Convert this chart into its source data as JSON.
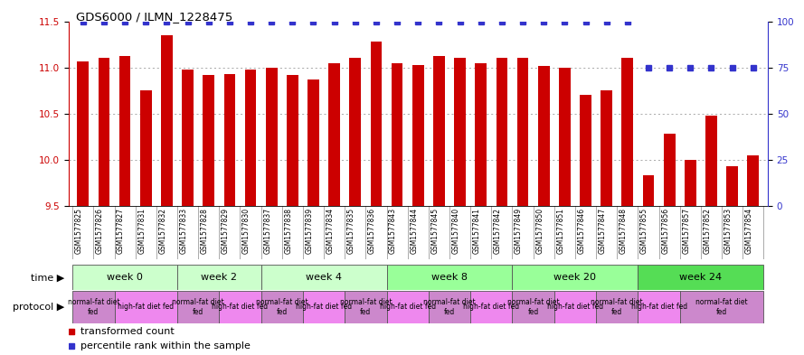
{
  "title": "GDS6000 / ILMN_1228475",
  "samples": [
    "GSM1577825",
    "GSM1577826",
    "GSM1577827",
    "GSM1577831",
    "GSM1577832",
    "GSM1577833",
    "GSM1577828",
    "GSM1577829",
    "GSM1577830",
    "GSM1577837",
    "GSM1577838",
    "GSM1577839",
    "GSM1577834",
    "GSM1577835",
    "GSM1577836",
    "GSM1577843",
    "GSM1577844",
    "GSM1577845",
    "GSM1577840",
    "GSM1577841",
    "GSM1577842",
    "GSM1577849",
    "GSM1577850",
    "GSM1577851",
    "GSM1577846",
    "GSM1577847",
    "GSM1577848",
    "GSM1577855",
    "GSM1577856",
    "GSM1577857",
    "GSM1577852",
    "GSM1577853",
    "GSM1577854"
  ],
  "bar_values": [
    11.07,
    11.1,
    11.12,
    10.75,
    11.35,
    10.98,
    10.92,
    10.93,
    10.98,
    11.0,
    10.92,
    10.87,
    11.05,
    11.1,
    11.28,
    11.05,
    11.03,
    11.12,
    11.1,
    11.05,
    11.1,
    11.1,
    11.02,
    11.0,
    10.7,
    10.75,
    11.1,
    9.83,
    10.28,
    10.0,
    10.48,
    9.93,
    10.05
  ],
  "percentile_values": [
    100,
    100,
    100,
    100,
    100,
    100,
    100,
    100,
    100,
    100,
    100,
    100,
    100,
    100,
    100,
    100,
    100,
    100,
    100,
    100,
    100,
    100,
    100,
    100,
    100,
    100,
    100,
    75,
    75,
    75,
    75,
    75,
    75
  ],
  "ylim_left": [
    9.5,
    11.5
  ],
  "ylim_right": [
    0,
    100
  ],
  "yticks_left": [
    9.5,
    10.0,
    10.5,
    11.0,
    11.5
  ],
  "yticks_right": [
    0,
    25,
    50,
    75,
    100
  ],
  "bar_color": "#cc0000",
  "percentile_color": "#3333cc",
  "grid_color": "#888888",
  "time_groups": [
    {
      "label": "week 0",
      "start": 0,
      "end": 5,
      "color": "#ccffcc"
    },
    {
      "label": "week 2",
      "start": 5,
      "end": 9,
      "color": "#ccffcc"
    },
    {
      "label": "week 4",
      "start": 9,
      "end": 15,
      "color": "#ccffcc"
    },
    {
      "label": "week 8",
      "start": 15,
      "end": 21,
      "color": "#99ff99"
    },
    {
      "label": "week 20",
      "start": 21,
      "end": 27,
      "color": "#99ff99"
    },
    {
      "label": "week 24",
      "start": 27,
      "end": 33,
      "color": "#55dd55"
    }
  ],
  "protocol_groups": [
    {
      "label": "normal-fat diet\nfed",
      "start": 0,
      "end": 2,
      "color": "#cc88cc"
    },
    {
      "label": "high-fat diet fed",
      "start": 2,
      "end": 5,
      "color": "#ee88ee"
    },
    {
      "label": "normal-fat diet\nfed",
      "start": 5,
      "end": 7,
      "color": "#cc88cc"
    },
    {
      "label": "high-fat diet fed",
      "start": 7,
      "end": 9,
      "color": "#ee88ee"
    },
    {
      "label": "normal-fat diet\nfed",
      "start": 9,
      "end": 11,
      "color": "#cc88cc"
    },
    {
      "label": "high-fat diet fed",
      "start": 11,
      "end": 13,
      "color": "#ee88ee"
    },
    {
      "label": "normal-fat diet\nfed",
      "start": 13,
      "end": 15,
      "color": "#cc88cc"
    },
    {
      "label": "high-fat diet fed",
      "start": 15,
      "end": 17,
      "color": "#ee88ee"
    },
    {
      "label": "normal-fat diet\nfed",
      "start": 17,
      "end": 19,
      "color": "#cc88cc"
    },
    {
      "label": "high-fat diet fed",
      "start": 19,
      "end": 21,
      "color": "#ee88ee"
    },
    {
      "label": "normal-fat diet\nfed",
      "start": 21,
      "end": 23,
      "color": "#cc88cc"
    },
    {
      "label": "high-fat diet fed",
      "start": 23,
      "end": 25,
      "color": "#ee88ee"
    },
    {
      "label": "normal-fat diet\nfed",
      "start": 25,
      "end": 27,
      "color": "#cc88cc"
    },
    {
      "label": "high-fat diet fed",
      "start": 27,
      "end": 29,
      "color": "#ee88ee"
    },
    {
      "label": "normal-fat diet\nfed",
      "start": 29,
      "end": 33,
      "color": "#cc88cc"
    }
  ],
  "legend_bar_label": "transformed count",
  "legend_pct_label": "percentile rank within the sample",
  "background_color": "#ffffff",
  "plot_bg_color": "#ffffff",
  "tick_color_left": "#cc0000",
  "tick_color_right": "#3333cc",
  "label_area_color": "#d8d8d8",
  "n_samples": 33
}
